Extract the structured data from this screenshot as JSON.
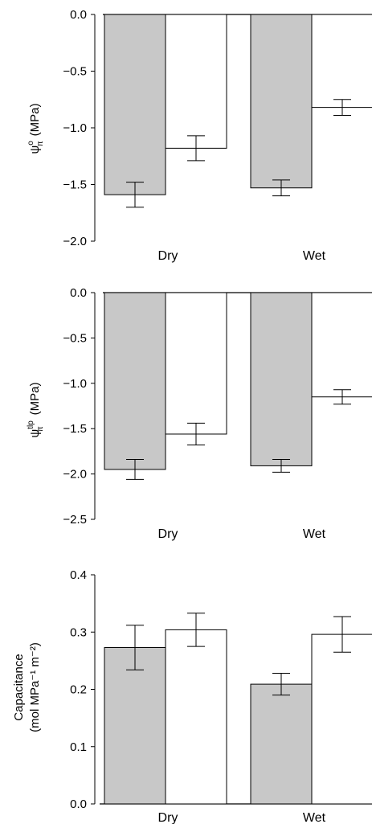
{
  "colors": {
    "treatment_a": "#c8c8c8",
    "treatment_b": "#ffffff",
    "stroke": "#000000"
  },
  "chart_data": [
    {
      "type": "bar",
      "categories": [
        "Dry",
        "Wet"
      ],
      "ylabel": {
        "symbol": "ψ",
        "sub": "π",
        "sup": "o",
        "unit": "(MPa)"
      },
      "ylim": [
        -2.0,
        0.0
      ],
      "yticks": [
        0.0,
        -0.5,
        -1.0,
        -1.5,
        -2.0
      ],
      "ytick_labels": [
        "0.0",
        "−0.5",
        "−1.0",
        "−1.5",
        "−2.0"
      ],
      "grid": false,
      "series": [
        {
          "values": [
            -1.59,
            -1.53
          ],
          "errors": [
            0.11,
            0.07
          ]
        },
        {
          "values": [
            -1.18,
            -0.82
          ],
          "errors": [
            0.11,
            0.07
          ]
        }
      ]
    },
    {
      "type": "bar",
      "categories": [
        "Dry",
        "Wet"
      ],
      "ylabel": {
        "symbol": "ψ",
        "sub": "π",
        "sup": "tlp",
        "unit": "(MPa)"
      },
      "ylim": [
        -2.5,
        0.0
      ],
      "yticks": [
        0.0,
        -0.5,
        -1.0,
        -1.5,
        -2.0,
        -2.5
      ],
      "ytick_labels": [
        "0.0",
        "−0.5",
        "−1.0",
        "−1.5",
        "−2.0",
        "−2.5"
      ],
      "grid": false,
      "series": [
        {
          "values": [
            -1.95,
            -1.91
          ],
          "errors": [
            0.11,
            0.07
          ]
        },
        {
          "values": [
            -1.56,
            -1.15
          ],
          "errors": [
            0.12,
            0.08
          ]
        }
      ]
    },
    {
      "type": "bar",
      "categories": [
        "Dry",
        "Wet"
      ],
      "ylabel": {
        "line1": "Capacitance",
        "line2": "(mol MPa⁻¹ m⁻²)"
      },
      "ylim": [
        0.0,
        0.4
      ],
      "yticks": [
        0.0,
        0.1,
        0.2,
        0.3,
        0.4
      ],
      "ytick_labels": [
        "0.0",
        "0.1",
        "0.2",
        "0.3",
        "0.4"
      ],
      "grid": false,
      "series": [
        {
          "values": [
            0.273,
            0.209
          ],
          "errors": [
            0.039,
            0.019
          ]
        },
        {
          "values": [
            0.304,
            0.296
          ],
          "errors": [
            0.029,
            0.031
          ]
        }
      ]
    }
  ]
}
